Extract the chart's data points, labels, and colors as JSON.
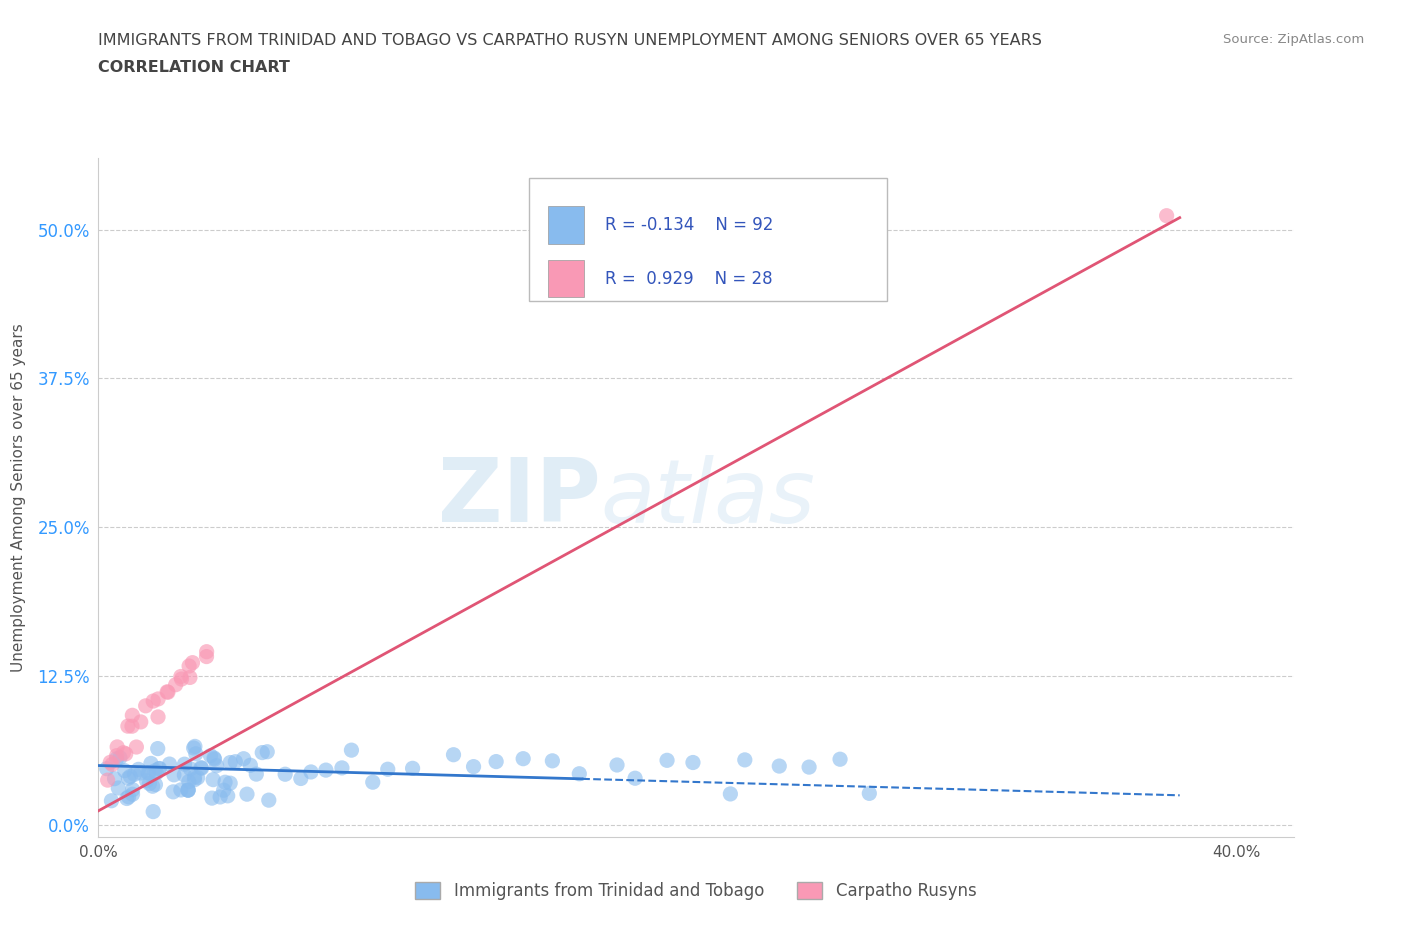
{
  "title_line1": "IMMIGRANTS FROM TRINIDAD AND TOBAGO VS CARPATHO RUSYN UNEMPLOYMENT AMONG SENIORS OVER 65 YEARS",
  "title_line2": "CORRELATION CHART",
  "source_text": "Source: ZipAtlas.com",
  "ylabel": "Unemployment Among Seniors over 65 years",
  "xlim": [
    0.0,
    0.42
  ],
  "ylim": [
    -0.01,
    0.56
  ],
  "xticks": [
    0.0,
    0.1,
    0.2,
    0.3,
    0.4
  ],
  "xticklabels": [
    "0.0%",
    "",
    "",
    "",
    "40.0%"
  ],
  "yticks": [
    0.0,
    0.125,
    0.25,
    0.375,
    0.5
  ],
  "yticklabels": [
    "0.0%",
    "12.5%",
    "25.0%",
    "37.5%",
    "50.0%"
  ],
  "grid_color": "#cccccc",
  "background_color": "#ffffff",
  "title_color": "#444444",
  "axis_color": "#555555",
  "ytick_color": "#3399ff",
  "watermark_zip": "ZIP",
  "watermark_atlas": "atlas",
  "blue_color": "#88bbee",
  "pink_color": "#f999b5",
  "blue_line_color": "#3377cc",
  "pink_line_color": "#e05575",
  "legend_text_color": "#3355bb",
  "scatter_blue_x": [
    0.003,
    0.005,
    0.006,
    0.007,
    0.008,
    0.009,
    0.01,
    0.011,
    0.012,
    0.013,
    0.014,
    0.015,
    0.016,
    0.017,
    0.018,
    0.019,
    0.02,
    0.021,
    0.022,
    0.023,
    0.024,
    0.025,
    0.026,
    0.027,
    0.028,
    0.029,
    0.03,
    0.031,
    0.032,
    0.033,
    0.034,
    0.035,
    0.036,
    0.037,
    0.038,
    0.039,
    0.04,
    0.041,
    0.042,
    0.043,
    0.045,
    0.047,
    0.05,
    0.052,
    0.055,
    0.058,
    0.06,
    0.065,
    0.07,
    0.075,
    0.08,
    0.085,
    0.09,
    0.095,
    0.1,
    0.11,
    0.12,
    0.13,
    0.14,
    0.15,
    0.16,
    0.17,
    0.18,
    0.19,
    0.2,
    0.21,
    0.22,
    0.23,
    0.24,
    0.25,
    0.26,
    0.27,
    0.005,
    0.008,
    0.01,
    0.012,
    0.015,
    0.018,
    0.02,
    0.022,
    0.025,
    0.028,
    0.03,
    0.032,
    0.035,
    0.038,
    0.04,
    0.042,
    0.045,
    0.048,
    0.05,
    0.055,
    0.06
  ],
  "scatter_blue_y": [
    0.045,
    0.05,
    0.04,
    0.035,
    0.045,
    0.05,
    0.055,
    0.04,
    0.045,
    0.05,
    0.04,
    0.045,
    0.05,
    0.035,
    0.045,
    0.04,
    0.05,
    0.045,
    0.055,
    0.045,
    0.04,
    0.05,
    0.045,
    0.04,
    0.05,
    0.045,
    0.055,
    0.045,
    0.04,
    0.05,
    0.045,
    0.055,
    0.045,
    0.04,
    0.055,
    0.045,
    0.05,
    0.04,
    0.045,
    0.055,
    0.05,
    0.045,
    0.055,
    0.045,
    0.05,
    0.045,
    0.05,
    0.045,
    0.05,
    0.045,
    0.05,
    0.045,
    0.05,
    0.045,
    0.05,
    0.045,
    0.05,
    0.045,
    0.05,
    0.045,
    0.05,
    0.045,
    0.05,
    0.045,
    0.05,
    0.045,
    0.05,
    0.045,
    0.05,
    0.045,
    0.05,
    0.045,
    0.03,
    0.025,
    0.03,
    0.035,
    0.03,
    0.025,
    0.03,
    0.035,
    0.025,
    0.035,
    0.03,
    0.025,
    0.035,
    0.03,
    0.025,
    0.035,
    0.03,
    0.025,
    0.02,
    0.025,
    0.02
  ],
  "scatter_pink_x": [
    0.003,
    0.005,
    0.007,
    0.008,
    0.01,
    0.012,
    0.013,
    0.015,
    0.017,
    0.018,
    0.02,
    0.022,
    0.023,
    0.025,
    0.027,
    0.028,
    0.03,
    0.032,
    0.033,
    0.035,
    0.037,
    0.038,
    0.005,
    0.008,
    0.01,
    0.012,
    0.375
  ],
  "scatter_pink_y": [
    0.04,
    0.055,
    0.065,
    0.07,
    0.075,
    0.08,
    0.085,
    0.09,
    0.095,
    0.1,
    0.1,
    0.105,
    0.11,
    0.115,
    0.12,
    0.12,
    0.125,
    0.13,
    0.13,
    0.135,
    0.14,
    0.145,
    0.05,
    0.06,
    0.065,
    0.07,
    0.505
  ],
  "blue_trend_x": [
    0.0,
    0.38
  ],
  "blue_trend_y": [
    0.05,
    0.025
  ],
  "blue_trend_solid_end": 0.17,
  "pink_trend_x": [
    0.0,
    0.38
  ],
  "pink_trend_y": [
    0.012,
    0.51
  ]
}
